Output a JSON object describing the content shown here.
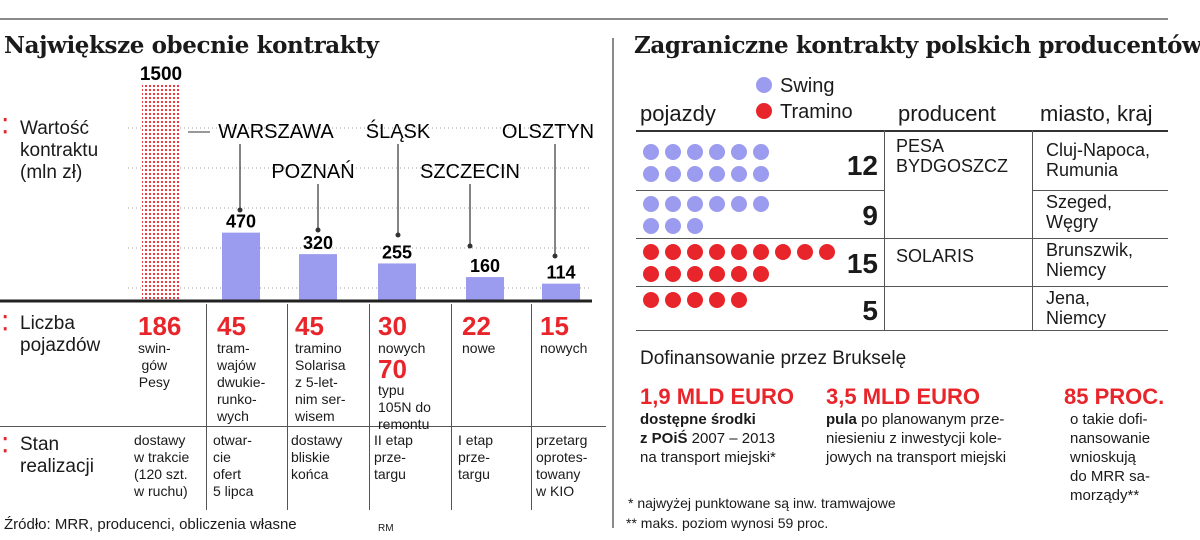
{
  "left": {
    "title": "Największe obecnie kontrakty",
    "label_value": "Wartość\nkontraktu\n(mln zł)",
    "label_vehicles": "Liczba\npojazdów",
    "label_status": "Stan\nrealizacji",
    "source": "Źródło: MRR, producenci, obliczenia własne",
    "author": "RM"
  },
  "chart_data": {
    "type": "bar",
    "title": "Największe obecnie kontrakty",
    "ylabel": "Wartość kontraktu (mln zł)",
    "ylim": [
      0,
      1500
    ],
    "categories": [
      "",
      "WARSZAWA",
      "POZNAŃ",
      "ŚLĄSK",
      "SZCZECIN",
      "OLSZTYN"
    ],
    "values": [
      1500,
      470,
      320,
      255,
      160,
      114
    ],
    "value_labels": [
      "1500",
      "470",
      "320",
      "255",
      "160",
      "114"
    ],
    "colors": [
      "#e8252a",
      "#9b9bef",
      "#9b9bef",
      "#9b9bef",
      "#9b9bef",
      "#9b9bef"
    ]
  },
  "vehicles": [
    {
      "count": "186",
      "desc": "swin-\ngów\nPesy",
      "extra_count": "",
      "extra_desc": "",
      "status": "dostawy\nw trakcie\n(120 szt.\nw ruchu)"
    },
    {
      "count": "45",
      "desc": "tram-\nwajów\ndwukie-\nrunko-\nwych",
      "extra_count": "",
      "extra_desc": "",
      "status": "otwar-\ncie\nofert\n5 lipca"
    },
    {
      "count": "45",
      "desc": "tramino\nSolarisa\nz 5-let-\nnim ser-\nwisem",
      "extra_count": "",
      "extra_desc": "",
      "status": "dostawy\nbliskie\nkońca"
    },
    {
      "count": "30",
      "desc": "nowych",
      "extra_count": "70",
      "extra_desc": "typu\n105N do\nremontu",
      "status": "II etap\nprze-\ntargu"
    },
    {
      "count": "22",
      "desc": "nowe",
      "extra_count": "",
      "extra_desc": "",
      "status": "I etap\nprze-\ntargu"
    },
    {
      "count": "15",
      "desc": "nowych",
      "extra_count": "",
      "extra_desc": "",
      "status": "przetarg\noprotes-\ntowany\nw KIO"
    }
  ],
  "right": {
    "title": "Zagraniczne kontrakty polskich producentów",
    "head_vehicles": "pojazdy",
    "head_producer": "producent",
    "head_city": "miasto, kraj",
    "legend": [
      {
        "name": "Swing",
        "color": "#9b9bef"
      },
      {
        "name": "Tramino",
        "color": "#e8252a"
      }
    ],
    "rows": [
      {
        "count": "12",
        "n": 12,
        "kind": "swing",
        "producer": "PESA\nBYDGOSZCZ",
        "city": "Cluj-Napoca,\nRumunia"
      },
      {
        "count": "9",
        "n": 9,
        "kind": "swing",
        "producer": "",
        "city": "Szeged,\nWęgry"
      },
      {
        "count": "15",
        "n": 15,
        "kind": "tramino",
        "producer": "SOLARIS",
        "city": "Brunszwik,\nNiemcy"
      },
      {
        "count": "5",
        "n": 5,
        "kind": "tramino",
        "producer": "",
        "city": "Jena,\nNiemcy"
      }
    ],
    "funding_title": "Dofinansowanie przez Brukselę",
    "funding": [
      {
        "value": "1,9 MLD EURO",
        "bold": "dostępne środki\nz POiŚ",
        "text": " 2007 – 2013\nna transport miejski*"
      },
      {
        "value": "3,5 MLD EURO",
        "bold": "pula",
        "text": " po planowanym prze-\nniesieniu z inwestycji kole-\njowych na transport miejski"
      },
      {
        "value": "85 PROC.",
        "bold": "",
        "text": "o takie dofi-\nnansowanie\nwnioskują\ndo MRR sa-\nmorządy**"
      }
    ],
    "note1": "* najwyżej punktowane są inw. tramwajowe",
    "note2": "** maks. poziom wynosi 59 proc."
  }
}
